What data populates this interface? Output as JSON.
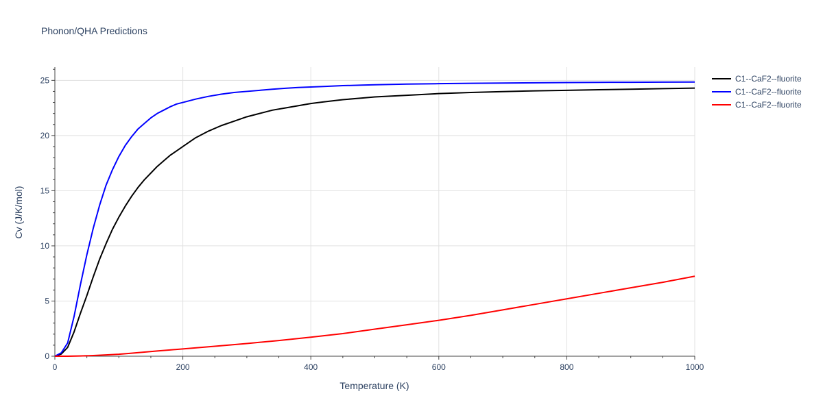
{
  "chart_data": {
    "type": "line",
    "title": "Phonon/QHA Predictions",
    "xlabel": "Temperature (K)",
    "ylabel": "Cv (J/K/mol)",
    "xlim": [
      0,
      1000
    ],
    "ylim": [
      0,
      26.2
    ],
    "x_ticks": [
      0,
      200,
      400,
      600,
      800,
      1000
    ],
    "y_ticks": [
      0,
      5,
      10,
      15,
      20,
      25
    ],
    "grid": true,
    "legend_position": "top-right",
    "series": [
      {
        "name": "C1--CaF2--fluorite",
        "color": "#000000",
        "x": [
          0,
          10,
          20,
          30,
          40,
          50,
          60,
          70,
          80,
          90,
          100,
          110,
          120,
          130,
          140,
          150,
          160,
          170,
          180,
          190,
          200,
          220,
          240,
          260,
          280,
          300,
          320,
          340,
          360,
          380,
          400,
          420,
          450,
          480,
          500,
          550,
          600,
          650,
          700,
          750,
          800,
          850,
          900,
          950,
          1000
        ],
        "y": [
          0,
          0.2,
          0.8,
          2.2,
          3.9,
          5.5,
          7.2,
          8.8,
          10.2,
          11.5,
          12.6,
          13.6,
          14.5,
          15.3,
          16.0,
          16.6,
          17.2,
          17.7,
          18.2,
          18.6,
          19.0,
          19.8,
          20.4,
          20.9,
          21.3,
          21.7,
          22.0,
          22.3,
          22.5,
          22.7,
          22.9,
          23.05,
          23.25,
          23.4,
          23.5,
          23.65,
          23.8,
          23.9,
          23.98,
          24.05,
          24.1,
          24.15,
          24.2,
          24.25,
          24.3
        ]
      },
      {
        "name": "C1--CaF2--fluorite",
        "color": "#0000ff",
        "x": [
          0,
          10,
          20,
          30,
          40,
          50,
          60,
          70,
          80,
          90,
          100,
          110,
          120,
          130,
          140,
          150,
          160,
          170,
          180,
          190,
          200,
          220,
          240,
          260,
          280,
          300,
          320,
          340,
          360,
          380,
          400,
          420,
          450,
          480,
          500,
          550,
          600,
          650,
          700,
          750,
          800,
          850,
          900,
          950,
          1000
        ],
        "y": [
          0,
          0.3,
          1.2,
          3.6,
          6.5,
          9.2,
          11.6,
          13.7,
          15.5,
          16.9,
          18.1,
          19.1,
          19.9,
          20.6,
          21.1,
          21.6,
          22.0,
          22.3,
          22.6,
          22.85,
          23.0,
          23.3,
          23.55,
          23.75,
          23.9,
          24.0,
          24.1,
          24.2,
          24.28,
          24.35,
          24.4,
          24.45,
          24.52,
          24.57,
          24.6,
          24.66,
          24.7,
          24.73,
          24.76,
          24.78,
          24.8,
          24.82,
          24.83,
          24.84,
          24.85
        ]
      },
      {
        "name": "C1--CaF2--fluorite",
        "color": "#ff0000",
        "x": [
          0,
          20,
          40,
          60,
          80,
          100,
          120,
          140,
          160,
          180,
          200,
          250,
          300,
          350,
          400,
          450,
          500,
          550,
          600,
          650,
          700,
          750,
          800,
          850,
          900,
          950,
          1000
        ],
        "y": [
          0,
          0.0,
          0.02,
          0.06,
          0.12,
          0.18,
          0.27,
          0.37,
          0.47,
          0.57,
          0.66,
          0.9,
          1.15,
          1.42,
          1.72,
          2.05,
          2.45,
          2.85,
          3.25,
          3.7,
          4.2,
          4.7,
          5.2,
          5.7,
          6.2,
          6.7,
          7.25
        ]
      }
    ]
  }
}
